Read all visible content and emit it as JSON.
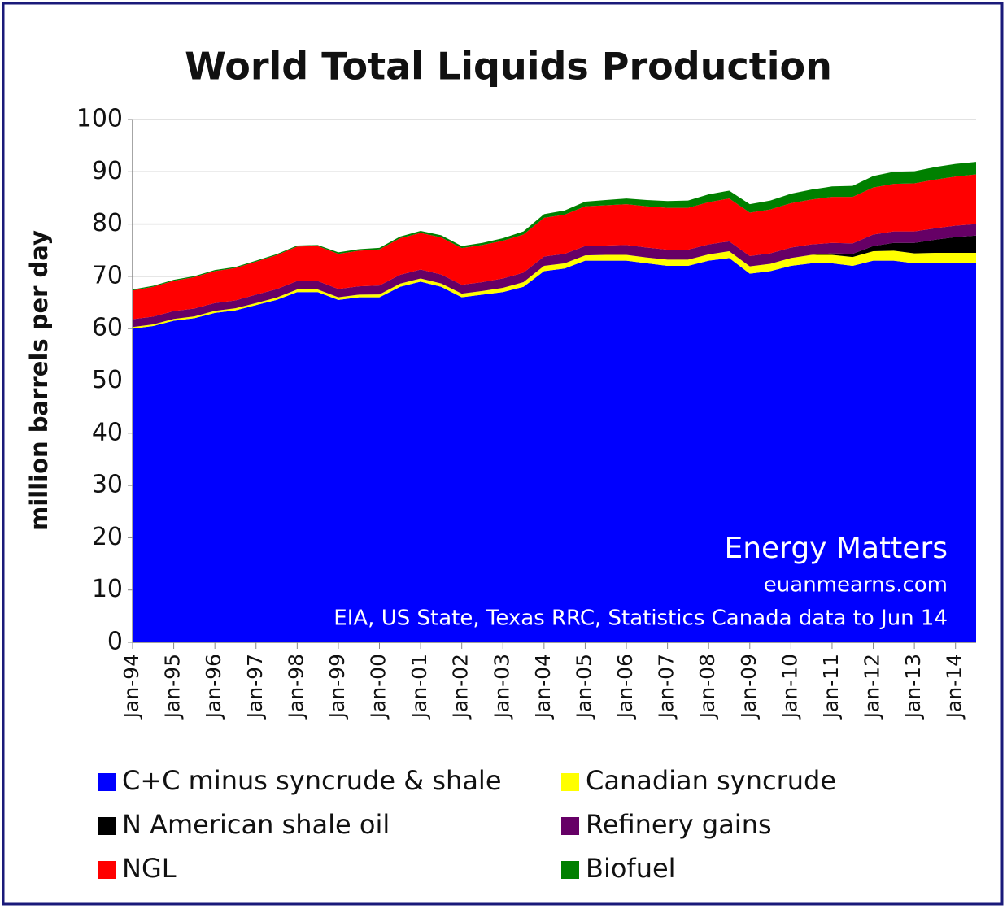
{
  "chart_data": {
    "type": "stacked_area",
    "title": "World Total Liquids Production",
    "y_label": "million barrels per day",
    "annotations": [
      "Energy Matters",
      "euanmearns.com",
      "EIA, US State, Texas RRC, Statistics Canada data to Jun 14"
    ],
    "categories": [
      "Jan-94",
      null,
      "Jan-95",
      null,
      "Jan-96",
      null,
      "Jan-97",
      null,
      "Jan-98",
      null,
      "Jan-99",
      null,
      "Jan-00",
      null,
      "Jan-01",
      null,
      "Jan-02",
      null,
      "Jan-03",
      null,
      "Jan-04",
      null,
      "Jan-05",
      null,
      "Jan-06",
      null,
      "Jan-07",
      null,
      "Jan-08",
      null,
      "Jan-09",
      null,
      "Jan-10",
      null,
      "Jan-11",
      null,
      "Jan-12",
      null,
      "Jan-13",
      null,
      "Jan-14",
      null
    ],
    "ylim": [
      0,
      100
    ],
    "yticks": [
      0,
      10,
      20,
      30,
      40,
      50,
      60,
      70,
      80,
      90,
      100
    ],
    "grid": true,
    "series": [
      {
        "name": "C+C minus syncrude & shale",
        "color": "#0000ff",
        "values": [
          60,
          60.5,
          61.5,
          62,
          63,
          63.5,
          64.5,
          65.5,
          67,
          67,
          65.5,
          66,
          66,
          68,
          69,
          68,
          66,
          66.5,
          67,
          68,
          71,
          71.5,
          73,
          73,
          73,
          72.5,
          72,
          72,
          73,
          73.5,
          70.5,
          71,
          72,
          72.5,
          72.5,
          72,
          73,
          73,
          72.5,
          72.5,
          72.5,
          72.5
        ]
      },
      {
        "name": "Canadian syncrude",
        "color": "#ffff00",
        "values": [
          0.3,
          0.3,
          0.35,
          0.35,
          0.4,
          0.4,
          0.4,
          0.45,
          0.5,
          0.5,
          0.5,
          0.5,
          0.55,
          0.6,
          0.6,
          0.65,
          0.7,
          0.7,
          0.8,
          0.9,
          1.0,
          1.0,
          1.0,
          1.1,
          1.1,
          1.1,
          1.2,
          1.2,
          1.2,
          1.3,
          1.4,
          1.4,
          1.5,
          1.6,
          1.6,
          1.7,
          1.8,
          1.9,
          1.9,
          2.0,
          2.0,
          2.0
        ]
      },
      {
        "name": "N American shale oil",
        "color": "#000000",
        "values": [
          0,
          0,
          0,
          0,
          0,
          0,
          0,
          0,
          0,
          0,
          0,
          0,
          0,
          0,
          0,
          0,
          0,
          0,
          0,
          0,
          0,
          0,
          0,
          0,
          0,
          0,
          0,
          0,
          0,
          0,
          0,
          0,
          0,
          0,
          0.3,
          0.6,
          1.0,
          1.5,
          2.0,
          2.5,
          3.0,
          3.3
        ]
      },
      {
        "name": "Refinery gains",
        "color": "#660066",
        "values": [
          1.5,
          1.5,
          1.5,
          1.5,
          1.5,
          1.5,
          1.6,
          1.6,
          1.6,
          1.6,
          1.6,
          1.6,
          1.7,
          1.7,
          1.7,
          1.7,
          1.7,
          1.7,
          1.8,
          1.8,
          1.8,
          1.8,
          1.8,
          1.8,
          1.9,
          1.9,
          1.9,
          1.9,
          1.9,
          1.9,
          2.0,
          2.0,
          2.0,
          2.0,
          2.0,
          2.0,
          2.2,
          2.2,
          2.2,
          2.2,
          2.2,
          2.2
        ]
      },
      {
        "name": "NGL",
        "color": "#ff0000",
        "values": [
          5.5,
          5.7,
          5.8,
          6.0,
          6.1,
          6.2,
          6.3,
          6.5,
          6.6,
          6.7,
          6.7,
          6.8,
          6.9,
          7.0,
          7.0,
          7.1,
          7.0,
          7.1,
          7.2,
          7.3,
          7.4,
          7.5,
          7.6,
          7.7,
          7.8,
          7.9,
          8.0,
          8.0,
          8.1,
          8.2,
          8.3,
          8.4,
          8.5,
          8.6,
          8.8,
          8.9,
          9.0,
          9.1,
          9.2,
          9.3,
          9.4,
          9.5
        ]
      },
      {
        "name": "Biofuel",
        "color": "#008000",
        "values": [
          0.2,
          0.2,
          0.2,
          0.2,
          0.2,
          0.2,
          0.2,
          0.2,
          0.2,
          0.2,
          0.3,
          0.3,
          0.3,
          0.3,
          0.4,
          0.4,
          0.4,
          0.4,
          0.5,
          0.6,
          0.7,
          0.8,
          0.9,
          1.0,
          1.1,
          1.2,
          1.3,
          1.4,
          1.5,
          1.5,
          1.6,
          1.7,
          1.8,
          1.9,
          2.0,
          2.1,
          2.2,
          2.3,
          2.3,
          2.4,
          2.4,
          2.4
        ]
      }
    ]
  }
}
